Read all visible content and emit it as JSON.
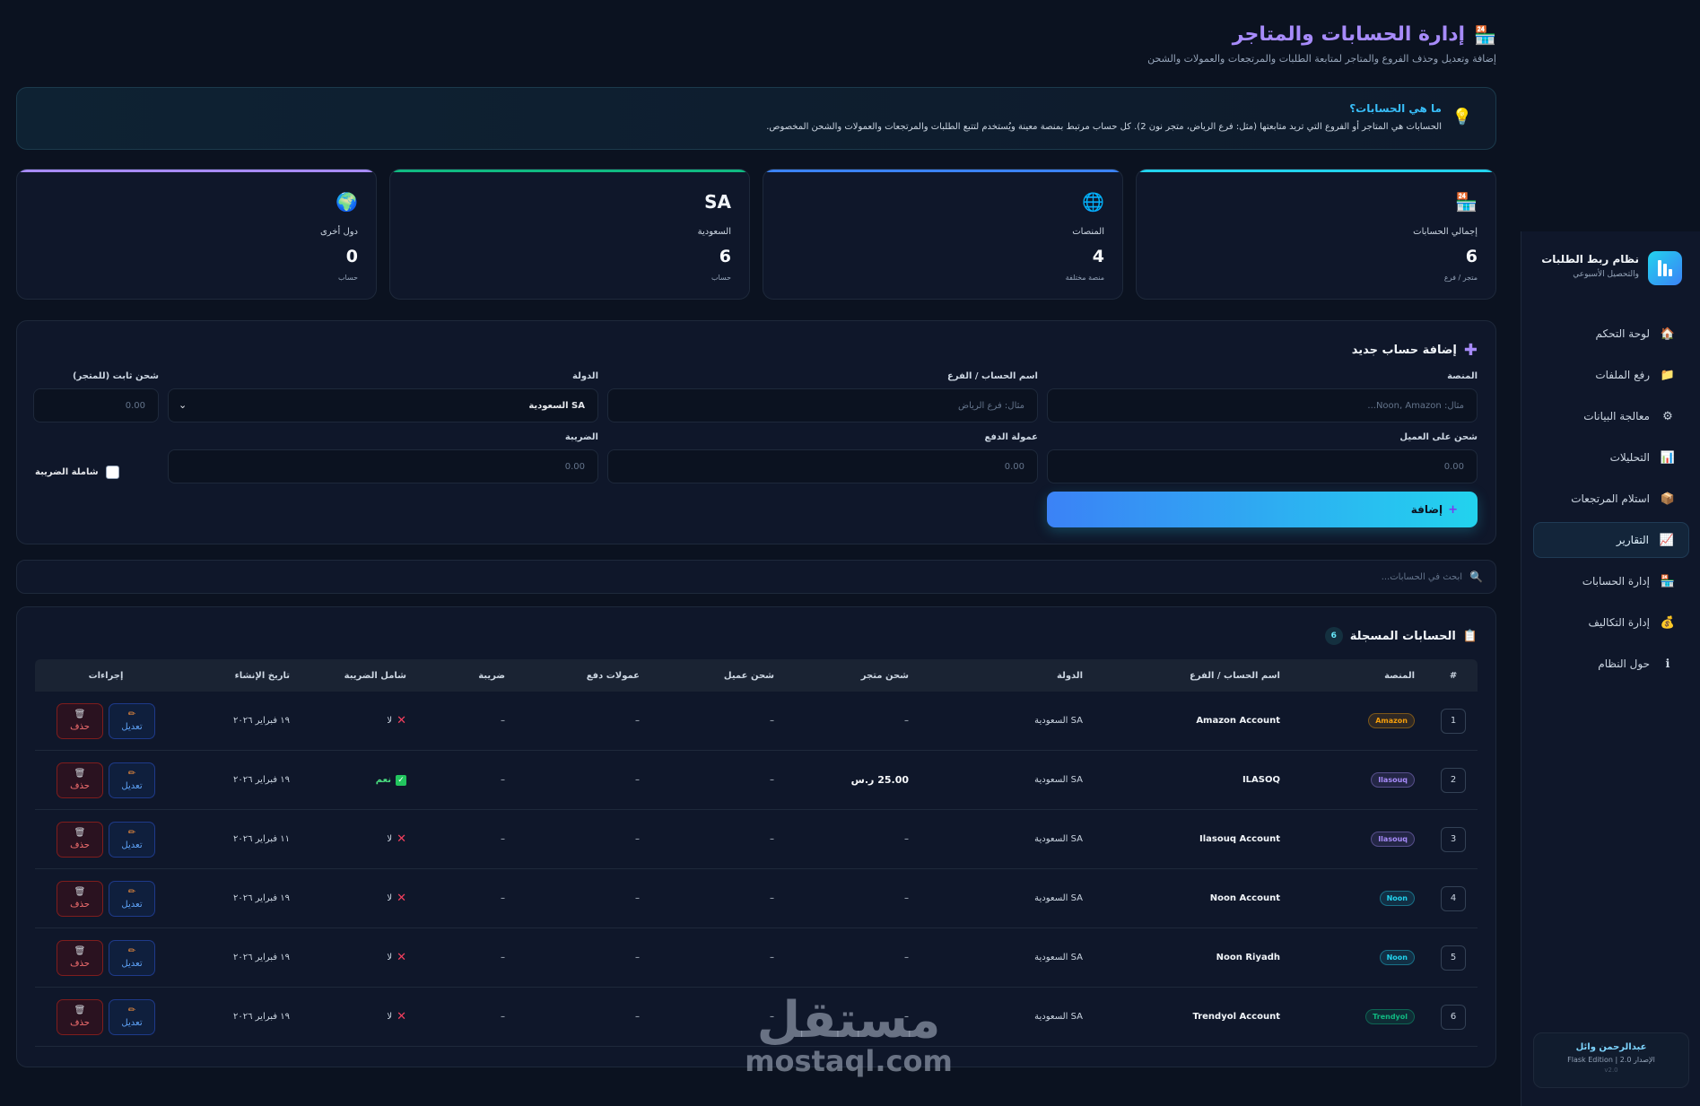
{
  "sidebar": {
    "brand_title": "نظام ربط الطلبات",
    "brand_sub": "والتحصيل الأسبوعي",
    "items": [
      {
        "label": "لوحة التحكم",
        "icon": "house-icon",
        "glyph": "🏠",
        "active": false
      },
      {
        "label": "رفع الملفات",
        "icon": "folder-icon",
        "glyph": "📁",
        "active": false
      },
      {
        "label": "معالجة البيانات",
        "icon": "gear-icon",
        "glyph": "⚙",
        "active": false
      },
      {
        "label": "التحليلات",
        "icon": "bar-chart-icon",
        "glyph": "📊",
        "active": false
      },
      {
        "label": "استلام المرتجعات",
        "icon": "package-icon",
        "glyph": "📦",
        "active": false
      },
      {
        "label": "التقارير",
        "icon": "line-chart-icon",
        "glyph": "📈",
        "active": true
      },
      {
        "label": "إدارة الحسابات",
        "icon": "store-icon",
        "glyph": "🏪",
        "active": false
      },
      {
        "label": "إدارة التكاليف",
        "icon": "money-bag-icon",
        "glyph": "💰",
        "active": false
      },
      {
        "label": "حول النظام",
        "icon": "info-icon",
        "glyph": "ℹ",
        "active": false
      }
    ],
    "user_name": "عبدالرحمن وائل",
    "version_line": "الإصدار 2.0 | Flask Edition",
    "version_small": "v2.0"
  },
  "page": {
    "title": "إدارة الحسابات والمتاجر",
    "subtitle": "إضافة وتعديل وحذف الفروع والمتاجر لمتابعة الطلبات والمرتجعات والعمولات والشحن"
  },
  "info": {
    "title": "ما هي الحسابات؟",
    "text": "الحسابات هي المتاجر أو الفروع التي تريد متابعتها (مثل: فرع الرياض، متجر نون 2). كل حساب مرتبط بمنصة معينة ويُستخدم لتتبع الطلبات والمرتجعات والعمولات والشحن المخصوص."
  },
  "stats": [
    {
      "icon": "store-icon",
      "glyph": "🏪",
      "label": "إجمالي الحسابات",
      "value": "6",
      "caption": "متجر / فرع",
      "color": "#22d3ee"
    },
    {
      "icon": "globe-icon",
      "glyph": "🌐",
      "label": "المنصات",
      "value": "4",
      "caption": "منصة مختلفة",
      "color": "#3b82f6"
    },
    {
      "icon": "sa-flag-icon",
      "glyph": "SA",
      "label": "السعودية",
      "value": "6",
      "caption": "حساب",
      "color": "#10b981"
    },
    {
      "icon": "earth-icon",
      "glyph": "🌍",
      "label": "دول أخرى",
      "value": "0",
      "caption": "حساب",
      "color": "#a78bfa"
    }
  ],
  "form": {
    "title": "إضافة حساب جديد",
    "platform_label": "المنصة",
    "platform_placeholder": "مثال: Noon, Amazon...",
    "name_label": "اسم الحساب / الفرع",
    "name_placeholder": "مثال: فرع الرياض",
    "country_label": "الدولة",
    "country_value": "SA السعودية",
    "store_ship_label": "شحن ثابت (للمتجر)",
    "store_ship_placeholder": "0.00",
    "customer_ship_label": "شحن على العميل",
    "customer_ship_placeholder": "0.00",
    "commission_label": "عمولة الدفع",
    "commission_placeholder": "0.00",
    "tax_label": "الضريبة",
    "tax_placeholder": "0.00",
    "tax_inclusive_label": "شاملة الضريبة",
    "add_label": "إضافة"
  },
  "search": {
    "placeholder": "ابحث في الحسابات..."
  },
  "table": {
    "title": "الحسابات المسجلة",
    "count": "6",
    "headers": {
      "num": "#",
      "platform": "المنصة",
      "name": "اسم الحساب / الفرع",
      "country": "الدولة",
      "store_ship": "شحن متجر",
      "customer_ship": "شحن عميل",
      "commission": "عمولات دفع",
      "tax": "ضريبة",
      "tax_inclusive": "شامل الضريبة",
      "created": "تاريخ الإنشاء",
      "actions": "إجراءات"
    },
    "edit_label": "تعديل",
    "delete_label": "حذف",
    "rows": [
      {
        "num": "1",
        "platform": "Amazon",
        "pcolor": "#f59e0b",
        "name": "Amazon Account",
        "country": "SA السعودية",
        "store_ship": "–",
        "customer_ship": "–",
        "commission": "–",
        "tax": "–",
        "tax_inclusive": "لا",
        "tax_yes": false,
        "created": "١٩ فبراير ٢٠٢٦"
      },
      {
        "num": "2",
        "platform": "Ilasouq",
        "pcolor": "#a78bfa",
        "name": "ILASOQ",
        "country": "SA السعودية",
        "store_ship": "25.00 ر.س",
        "store_bold": true,
        "customer_ship": "–",
        "commission": "–",
        "tax": "–",
        "tax_inclusive": "نعم",
        "tax_yes": true,
        "created": "١٩ فبراير ٢٠٢٦"
      },
      {
        "num": "3",
        "platform": "Ilasouq",
        "pcolor": "#a78bfa",
        "name": "Ilasouq Account",
        "country": "SA السعودية",
        "store_ship": "–",
        "customer_ship": "–",
        "commission": "–",
        "tax": "–",
        "tax_inclusive": "لا",
        "tax_yes": false,
        "created": "١١ فبراير ٢٠٢٦"
      },
      {
        "num": "4",
        "platform": "Noon",
        "pcolor": "#22d3ee",
        "name": "Noon Account",
        "country": "SA السعودية",
        "store_ship": "–",
        "customer_ship": "–",
        "commission": "–",
        "tax": "–",
        "tax_inclusive": "لا",
        "tax_yes": false,
        "created": "١٩ فبراير ٢٠٢٦"
      },
      {
        "num": "5",
        "platform": "Noon",
        "pcolor": "#22d3ee",
        "name": "Noon Riyadh",
        "country": "SA السعودية",
        "store_ship": "–",
        "customer_ship": "–",
        "commission": "–",
        "tax": "–",
        "tax_inclusive": "لا",
        "tax_yes": false,
        "created": "١٩ فبراير ٢٠٢٦"
      },
      {
        "num": "6",
        "platform": "Trendyol",
        "pcolor": "#10b981",
        "name": "Trendyol Account",
        "country": "SA السعودية",
        "store_ship": "–",
        "customer_ship": "–",
        "commission": "–",
        "tax": "–",
        "tax_inclusive": "لا",
        "tax_yes": false,
        "created": "١٩ فبراير ٢٠٢٦"
      }
    ]
  },
  "watermark": {
    "ar": "مستقل",
    "en": "mostaql.com"
  }
}
